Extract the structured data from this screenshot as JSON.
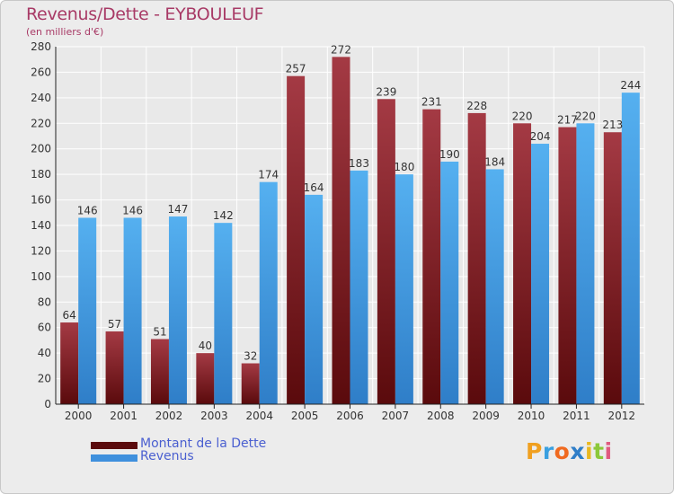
{
  "title": "Revenus/Dette - EYBOULEUF",
  "subtitle": "(en milliers d'€)",
  "logo_text": "Proxiti",
  "colors": {
    "dette_light": "#a43a44",
    "dette_dark": "#5a0a0c",
    "revenus_light": "#55b0f0",
    "revenus_dark": "#2f7ec8",
    "title": "#a83a66",
    "legend_text": "#4a5fd0"
  },
  "chart_data": {
    "type": "bar",
    "title": "Revenus/Dette - EYBOULEUF",
    "subtitle": "(en milliers d'€)",
    "categories": [
      "2000",
      "2001",
      "2002",
      "2003",
      "2004",
      "2005",
      "2006",
      "2007",
      "2008",
      "2009",
      "2010",
      "2011",
      "2012"
    ],
    "series": [
      {
        "name": "Montant de la Dette",
        "values": [
          64,
          57,
          51,
          40,
          32,
          257,
          272,
          239,
          231,
          228,
          220,
          217,
          213
        ]
      },
      {
        "name": "Revenus",
        "values": [
          146,
          146,
          147,
          142,
          174,
          164,
          183,
          180,
          190,
          184,
          204,
          220,
          244
        ]
      }
    ],
    "yticks": [
      0,
      20,
      40,
      60,
      80,
      100,
      120,
      140,
      160,
      180,
      200,
      220,
      240,
      260,
      280
    ],
    "ylim": [
      0,
      280
    ],
    "grid": true,
    "legend_position": "bottom-left"
  }
}
